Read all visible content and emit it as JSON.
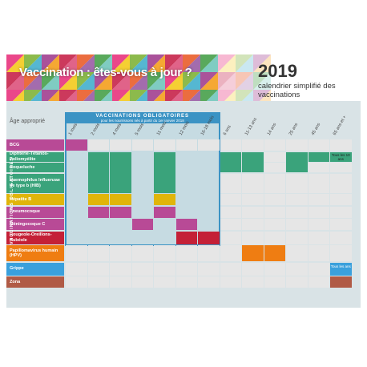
{
  "header": {
    "title": "Vaccination : êtes-vous à jour ?",
    "year": "2019",
    "subtitle": "calendrier simplifié des vaccinations"
  },
  "mandatory_box": {
    "title": "VACCINATIONS OBLIGATOIRES",
    "subtitle": "pour les nourrissons nés à partir du 1er janvier 2018",
    "side_label": "VACCINATIONS OBLIGATOIRES"
  },
  "table": {
    "age_header": "Âge approprié",
    "ages": [
      "1 mois",
      "2 mois",
      "4 mois",
      "5 mois",
      "11 mois",
      "12 mois",
      "16-18 mois",
      "6 ans",
      "11-13 ans",
      "14 ans",
      "25 ans",
      "45 ans",
      "65 ans et +"
    ],
    "rows": [
      {
        "label": "BCG",
        "color": "#b84a96"
      },
      {
        "label": "Diphtérie-Tétanos-Poliomyélite",
        "color": "#3aa37b"
      },
      {
        "label": "Coqueluche",
        "color": "#3aa37b"
      },
      {
        "label": "Haemophilus Influenzae de type b (HIB)",
        "color": "#3aa37b"
      },
      {
        "label": "Hépatite B",
        "color": "#e0b50a"
      },
      {
        "label": "Pneumocoque",
        "color": "#b84a96"
      },
      {
        "label": "Méningocoque C",
        "color": "#b84a96"
      },
      {
        "label": "Rougeole-Oreillons-Rubéole",
        "color": "#c42037"
      },
      {
        "label": "Papillomavirus humain (HPV)",
        "color": "#ef7d12"
      },
      {
        "label": "Grippe",
        "color": "#3aa0dc"
      },
      {
        "label": "Zona",
        "color": "#b05a45"
      }
    ],
    "notes": {
      "dtp_tous": "Tous les 10 ans",
      "grippe_tous": "Tous les ans"
    }
  },
  "colors": {
    "mandatory_border": "#3b93c4",
    "grid_bg": "#e6e6e6",
    "green": "#3aa37b",
    "yellow": "#e0b50a",
    "magenta": "#b84a96",
    "red": "#c42037",
    "orange": "#ef7d12",
    "blue": "#3aa0dc",
    "brown": "#b05a45"
  }
}
